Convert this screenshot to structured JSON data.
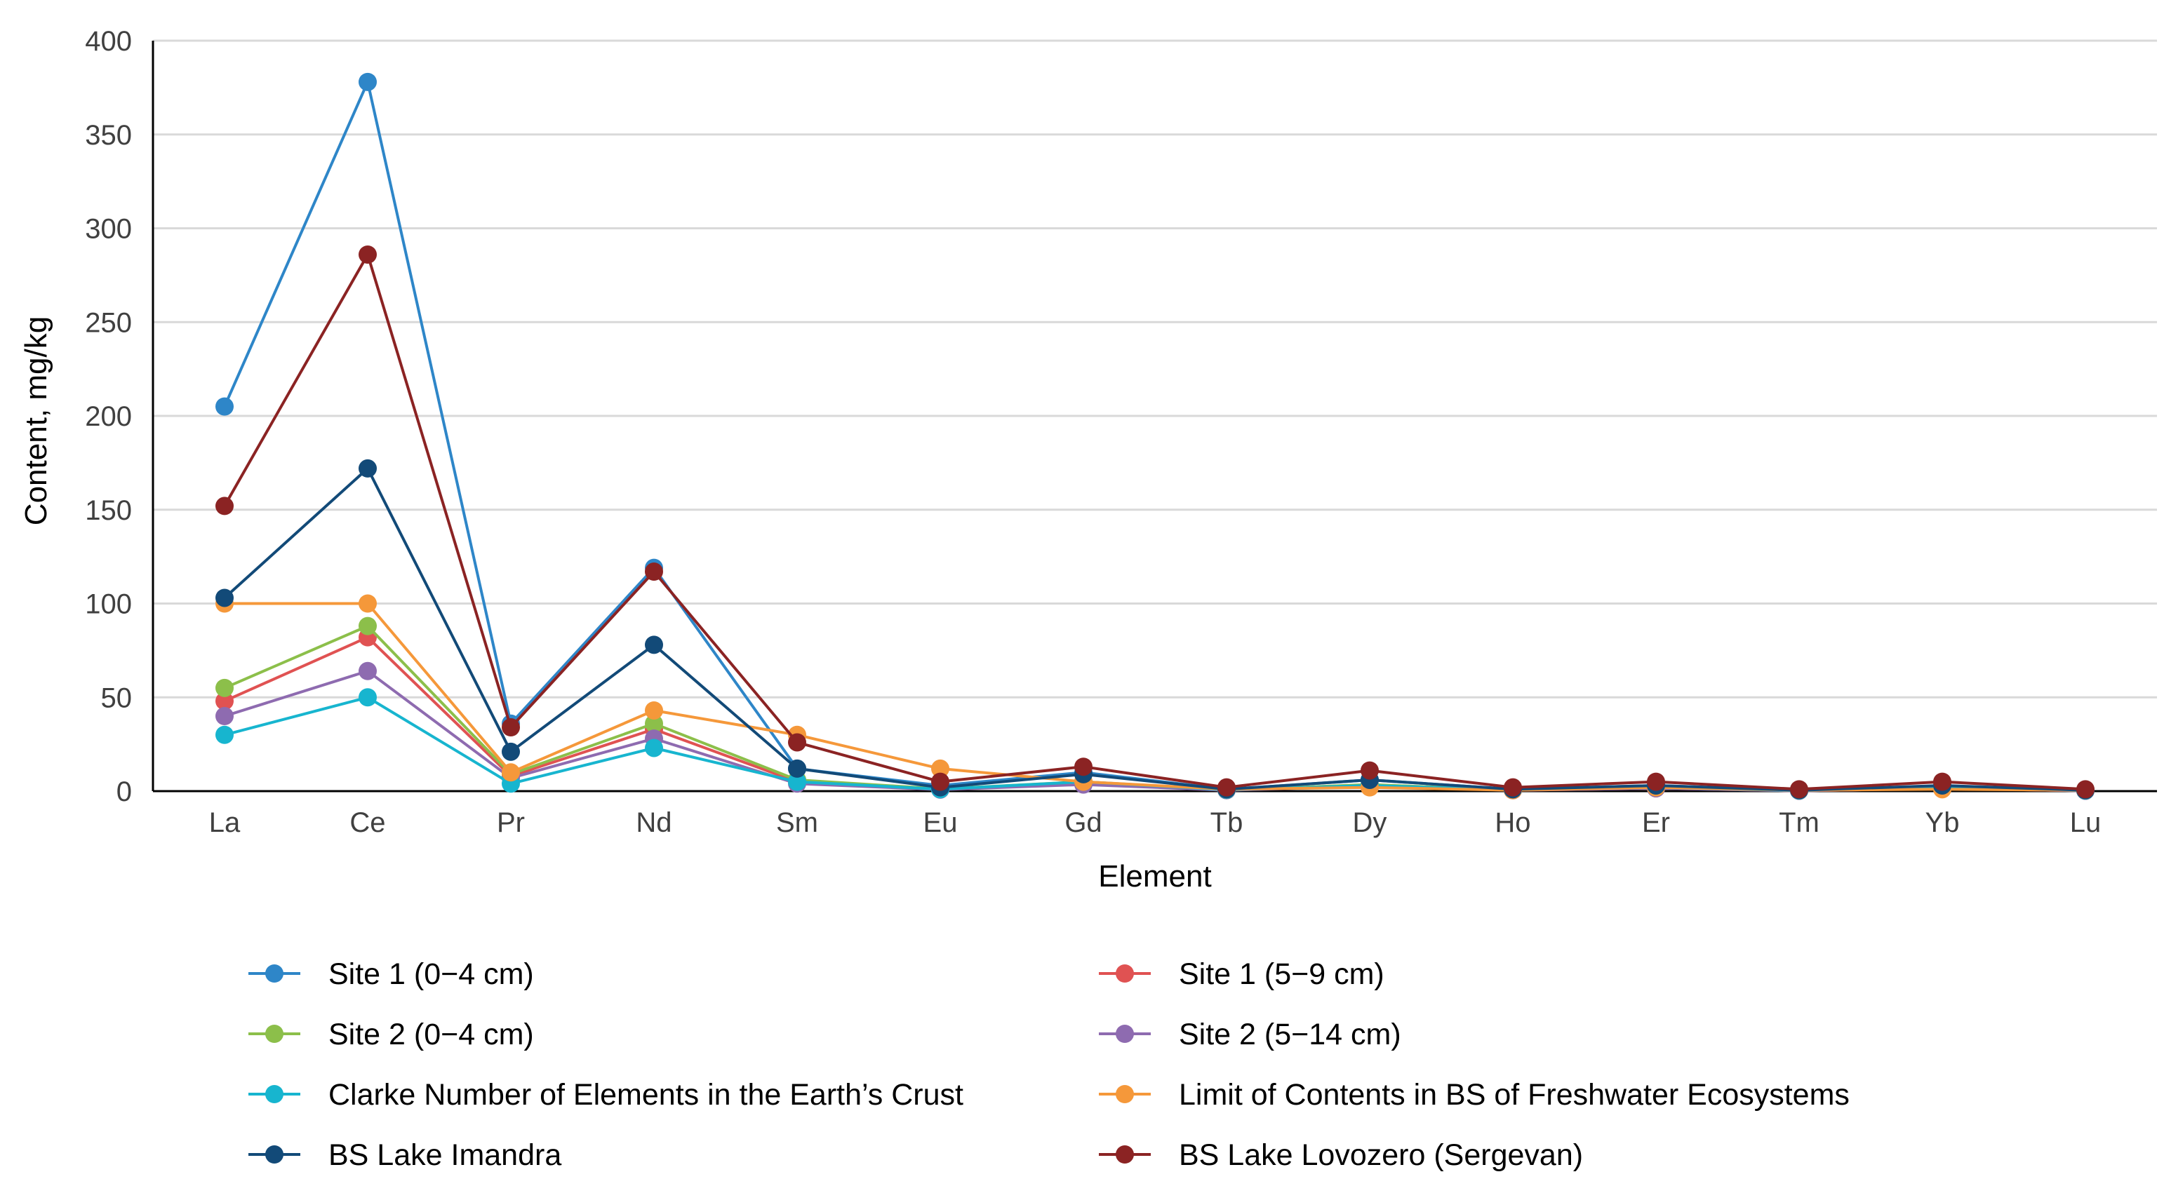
{
  "chart_data": {
    "type": "line",
    "title": "",
    "xlabel": "Element",
    "ylabel": "Content, mg/kg",
    "ylim": [
      0,
      400
    ],
    "yticks": [
      0,
      50,
      100,
      150,
      200,
      250,
      300,
      350,
      400
    ],
    "grid": true,
    "legend_position": "bottom",
    "categories": [
      "La",
      "Ce",
      "Pr",
      "Nd",
      "Sm",
      "Eu",
      "Gd",
      "Tb",
      "Dy",
      "Ho",
      "Er",
      "Tm",
      "Yb",
      "Lu"
    ],
    "series": [
      {
        "name": "Site 1 (0−4 cm)",
        "color": "#2e86c8",
        "values": [
          205,
          378,
          36,
          119,
          12,
          3,
          10,
          1,
          6,
          1,
          3,
          0.5,
          2,
          0.5
        ]
      },
      {
        "name": "Site 1 (5−9 cm)",
        "color": "#e05252",
        "values": [
          48,
          82,
          8,
          33,
          5,
          1,
          4,
          0.5,
          3,
          0.5,
          1.5,
          0.2,
          1.5,
          0.2
        ]
      },
      {
        "name": "Site 2 (0−4 cm)",
        "color": "#8cbf4a",
        "values": [
          55,
          88,
          9,
          36,
          6,
          1.2,
          5,
          0.6,
          3.5,
          0.6,
          2,
          0.3,
          2,
          0.3
        ]
      },
      {
        "name": "Site 2 (5−14 cm)",
        "color": "#8e6bb0",
        "values": [
          40,
          64,
          7,
          28,
          4,
          0.8,
          3.5,
          0.5,
          2.5,
          0.5,
          1.5,
          0.2,
          1.5,
          0.2
        ]
      },
      {
        "name": "Clarke Number of Elements in the Earth’s Crust",
        "color": "#17b5cf",
        "values": [
          30,
          50,
          4,
          23,
          5,
          1,
          5,
          0.7,
          3,
          0.8,
          2,
          0.3,
          2,
          0.3
        ]
      },
      {
        "name": "Limit of Contents in BS of Freshwater Ecosystems",
        "color": "#f5983a",
        "values": [
          100,
          100,
          10,
          43,
          30,
          12,
          5,
          1,
          2,
          0.5,
          2,
          0.5,
          1,
          0.5
        ]
      },
      {
        "name": "BS Lake Imandra",
        "color": "#124a78",
        "values": [
          103,
          172,
          21,
          78,
          12,
          2,
          9,
          1,
          6,
          1,
          3,
          0.5,
          3,
          0.5
        ]
      },
      {
        "name": "BS Lake Lovozero (Sergevan)",
        "color": "#8b2323",
        "values": [
          152,
          286,
          34,
          117,
          26,
          5,
          13,
          2,
          11,
          2,
          5,
          1,
          5,
          1
        ]
      }
    ]
  }
}
